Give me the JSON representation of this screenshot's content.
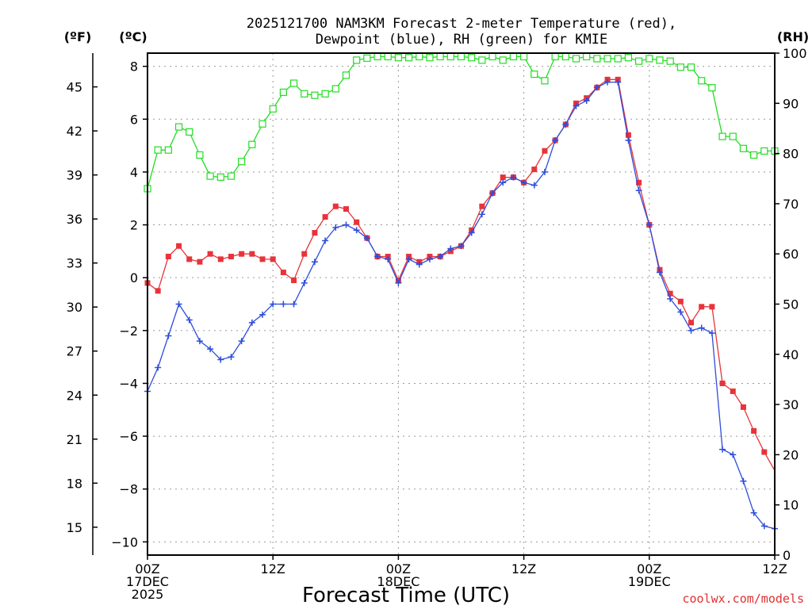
{
  "chart_data": {
    "type": "line",
    "title_lines": [
      "2025121700 NAM3KM Forecast 2-meter Temperature (red),",
      "Dewpoint (blue), RH (green) for KMIE"
    ],
    "units": {
      "fahrenheit": "(ºF)",
      "celsius": "(ºC)",
      "rh": "(RH)"
    },
    "xlabel": "Forecast Time (UTC)",
    "credit": "coolwx.com/models",
    "x_range_hours": [
      0,
      60
    ],
    "y_left_c": {
      "min": -10.5,
      "max": 8.5,
      "ticks": [
        8,
        6,
        4,
        2,
        0,
        -2,
        -4,
        -6,
        -8,
        -10
      ],
      "tick_labels": [
        "8",
        "6",
        "4",
        "2",
        "0",
        "−2",
        "−4",
        "−6",
        "−8",
        "−10"
      ]
    },
    "y_left_f": {
      "ticks": [
        45,
        42,
        39,
        36,
        33,
        30,
        27,
        24,
        21,
        18,
        15
      ],
      "tick_labels": [
        "45",
        "42",
        "39",
        "36",
        "33",
        "30",
        "27",
        "24",
        "21",
        "18",
        "15"
      ]
    },
    "y_right_rh": {
      "min": 0,
      "max": 100,
      "ticks": [
        100,
        90,
        80,
        70,
        60,
        50,
        40,
        30,
        20,
        10,
        0
      ],
      "tick_labels": [
        "100",
        "90",
        "80",
        "70",
        "60",
        "50",
        "40",
        "30",
        "20",
        "10",
        "0"
      ]
    },
    "x_ticks": [
      {
        "hour": 0,
        "lines": [
          "00Z",
          "17DEC",
          "2025"
        ]
      },
      {
        "hour": 12,
        "lines": [
          "12Z"
        ]
      },
      {
        "hour": 24,
        "lines": [
          "00Z",
          "18DEC"
        ]
      },
      {
        "hour": 36,
        "lines": [
          "12Z"
        ]
      },
      {
        "hour": 48,
        "lines": [
          "00Z",
          "19DEC"
        ]
      },
      {
        "hour": 60,
        "lines": [
          "12Z"
        ]
      }
    ],
    "series": [
      {
        "name": "Temperature",
        "color": "#e8333a",
        "marker": "filled-square",
        "axis": "celsius",
        "hours": [
          0,
          1,
          2,
          3,
          4,
          5,
          6,
          7,
          8,
          9,
          10,
          11,
          12,
          13,
          14,
          15,
          16,
          17,
          18,
          19,
          20,
          21,
          22,
          23,
          24,
          25,
          26,
          27,
          28,
          29,
          30,
          31,
          32,
          33,
          34,
          35,
          36,
          37,
          38,
          39,
          40,
          41,
          42,
          43,
          44,
          45,
          46,
          47,
          48,
          49,
          50,
          51,
          52,
          53,
          54,
          55,
          56,
          57,
          58,
          59,
          60
        ],
        "values": [
          -0.2,
          -0.5,
          0.8,
          1.2,
          0.7,
          0.6,
          0.9,
          0.7,
          0.8,
          0.9,
          0.9,
          0.7,
          0.7,
          0.2,
          -0.1,
          0.9,
          1.7,
          2.3,
          2.7,
          2.6,
          2.1,
          1.5,
          0.8,
          0.8,
          -0.1,
          0.8,
          0.6,
          0.8,
          0.8,
          1.0,
          1.2,
          1.8,
          2.7,
          3.2,
          3.8,
          3.8,
          3.6,
          4.1,
          4.8,
          5.2,
          5.8,
          6.6,
          6.8,
          7.2,
          7.5,
          7.5,
          5.4,
          3.6,
          2.0,
          0.3,
          -0.6,
          -0.9,
          -1.7,
          -1.1,
          -1.1,
          -4.0,
          -4.3,
          -4.9,
          -5.8,
          -6.6,
          -7.3
        ],
        "hide_last_marker": true
      },
      {
        "name": "Dewpoint",
        "color": "#2d4ddb",
        "marker": "plus",
        "axis": "celsius",
        "hours": [
          0,
          1,
          2,
          3,
          4,
          5,
          6,
          7,
          8,
          9,
          10,
          11,
          12,
          13,
          14,
          15,
          16,
          17,
          18,
          19,
          20,
          21,
          22,
          23,
          24,
          25,
          26,
          27,
          28,
          29,
          30,
          31,
          32,
          33,
          34,
          35,
          36,
          37,
          38,
          39,
          40,
          41,
          42,
          43,
          44,
          45,
          46,
          47,
          48,
          49,
          50,
          51,
          52,
          53,
          54,
          55,
          56,
          57,
          58,
          59,
          60
        ],
        "values": [
          -4.3,
          -3.4,
          -2.2,
          -1.0,
          -1.6,
          -2.4,
          -2.7,
          -3.1,
          -3.0,
          -2.4,
          -1.7,
          -1.4,
          -1.0,
          -1.0,
          -1.0,
          -0.2,
          0.6,
          1.4,
          1.9,
          2.0,
          1.8,
          1.5,
          0.8,
          0.7,
          -0.2,
          0.7,
          0.5,
          0.7,
          0.8,
          1.1,
          1.2,
          1.7,
          2.4,
          3.2,
          3.6,
          3.8,
          3.6,
          3.5,
          4.0,
          5.2,
          5.8,
          6.5,
          6.7,
          7.2,
          7.4,
          7.4,
          5.2,
          3.3,
          2.0,
          0.2,
          -0.8,
          -1.3,
          -2.0,
          -1.9,
          -2.1,
          -6.5,
          -6.7,
          -7.7,
          -8.9,
          -9.4,
          -9.5
        ]
      },
      {
        "name": "RH",
        "color": "#22dd22",
        "marker": "open-square",
        "axis": "rh",
        "hours": [
          0,
          1,
          2,
          3,
          4,
          5,
          6,
          7,
          8,
          9,
          10,
          11,
          12,
          13,
          14,
          15,
          16,
          17,
          18,
          19,
          20,
          21,
          22,
          23,
          24,
          25,
          26,
          27,
          28,
          29,
          30,
          31,
          32,
          33,
          34,
          35,
          36,
          37,
          38,
          39,
          40,
          41,
          42,
          43,
          44,
          45,
          46,
          47,
          48,
          49,
          50,
          51,
          52,
          53,
          54,
          55,
          56,
          57,
          58,
          59,
          60
        ],
        "values": [
          73,
          80.7,
          80.7,
          85.3,
          84.3,
          79.7,
          75.5,
          75.3,
          75.5,
          78.4,
          81.8,
          85.9,
          88.9,
          92.2,
          94.0,
          91.9,
          91.6,
          91.9,
          92.9,
          95.6,
          98.6,
          99.0,
          99.3,
          99.3,
          99.1,
          99.1,
          99.3,
          99.1,
          99.3,
          99.3,
          99.3,
          99.1,
          98.6,
          99.3,
          98.6,
          99.3,
          99.3,
          95.8,
          94.5,
          99.3,
          99.3,
          98.9,
          99.3,
          98.9,
          98.9,
          98.9,
          99.1,
          98.4,
          98.9,
          98.6,
          98.4,
          97.2,
          97.2,
          94.5,
          93.1,
          83.4,
          83.4,
          81.0,
          79.7,
          80.5,
          80.5
        ]
      }
    ]
  }
}
